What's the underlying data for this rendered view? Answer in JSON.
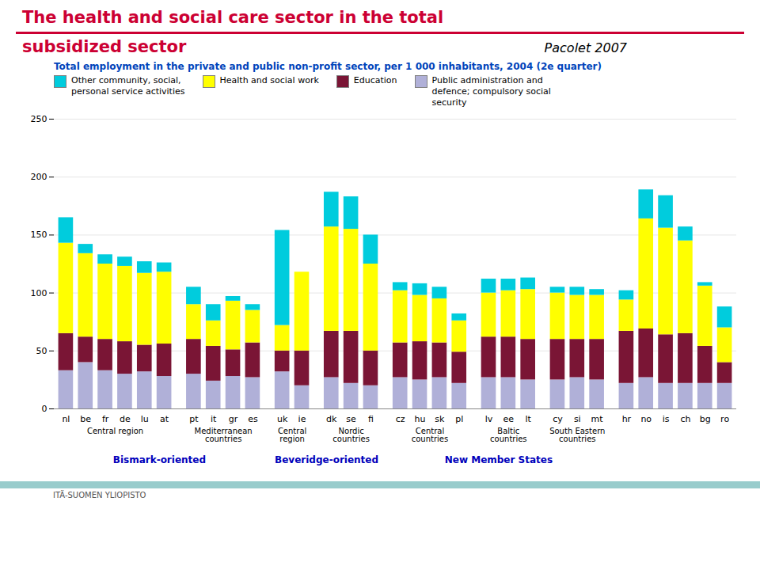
{
  "chart_data": {
    "type": "bar",
    "stacked": true,
    "grid": true,
    "title": "The health and social care sector in the total\nsubsidized sector",
    "subtitle": "Total employment in the private and public non-profit sector, per 1 000 inhabitants, 2004 (2e quarter)",
    "categories": [
      "nl",
      "be",
      "fr",
      "de",
      "lu",
      "at",
      "pt",
      "it",
      "gr",
      "es",
      "uk",
      "ie",
      "dk",
      "se",
      "fi",
      "cz",
      "hu",
      "sk",
      "pl",
      "lv",
      "ee",
      "lt",
      "cy",
      "si",
      "mt",
      "hr",
      "no",
      "is",
      "ch",
      "bg",
      "ro"
    ],
    "ylim": [
      0,
      250
    ],
    "yticks": [
      0,
      50,
      100,
      150,
      200,
      250
    ],
    "series": [
      {
        "name": "Public administration and\ndefence; compulsory social\nsecurity",
        "color": "#b0b0d8",
        "values": [
          33,
          40,
          33,
          30,
          32,
          28,
          30,
          24,
          28,
          27,
          32,
          20,
          27,
          22,
          20,
          27,
          25,
          27,
          22,
          27,
          27,
          25,
          25,
          27,
          25,
          22,
          27,
          22,
          22,
          22,
          22
        ]
      },
      {
        "name": "Education",
        "color": "#7a1535",
        "values": [
          32,
          22,
          27,
          28,
          23,
          28,
          30,
          30,
          23,
          30,
          18,
          30,
          40,
          45,
          30,
          30,
          33,
          30,
          27,
          35,
          35,
          35,
          35,
          33,
          35,
          45,
          42,
          42,
          43,
          32,
          18
        ]
      },
      {
        "name": "Health and social work",
        "color": "#ffff00",
        "values": [
          78,
          72,
          65,
          65,
          62,
          62,
          30,
          22,
          42,
          28,
          22,
          68,
          90,
          88,
          75,
          45,
          40,
          38,
          27,
          38,
          40,
          43,
          40,
          38,
          38,
          27,
          95,
          92,
          80,
          52,
          30
        ]
      },
      {
        "name": "Other community, social,\npersonal service activities",
        "color": "#00ccdd",
        "values": [
          22,
          8,
          8,
          8,
          10,
          8,
          15,
          14,
          4,
          5,
          82,
          0,
          30,
          28,
          25,
          7,
          10,
          10,
          6,
          12,
          10,
          10,
          5,
          7,
          5,
          8,
          25,
          28,
          12,
          3,
          18
        ]
      }
    ],
    "annotations": [
      {
        "text": "Pacolet 2007"
      },
      {
        "text": "ITÄ-SUOMEN YLIOPISTO"
      },
      {
        "text": "Central region",
        "kind": "group",
        "span": [
          "nl",
          "at"
        ]
      },
      {
        "text": "Mediterranean\ncountries",
        "kind": "group",
        "span": [
          "pt",
          "es"
        ]
      },
      {
        "text": "Central\nregion",
        "kind": "group",
        "span": [
          "uk",
          "ie"
        ]
      },
      {
        "text": "Nordic\ncountries",
        "kind": "group",
        "span": [
          "dk",
          "fi"
        ]
      },
      {
        "text": "Central\ncountries",
        "kind": "group",
        "span": [
          "cz",
          "pl"
        ]
      },
      {
        "text": "Baltic\ncountries",
        "kind": "group",
        "span": [
          "lv",
          "lt"
        ]
      },
      {
        "text": "South Eastern\ncountries",
        "kind": "group",
        "span": [
          "cy",
          "mt"
        ]
      },
      {
        "text": "Bismark-oriented",
        "kind": "orientation",
        "span": [
          "nl",
          "es"
        ]
      },
      {
        "text": "Beveridge-oriented",
        "kind": "orientation",
        "span": [
          "uk",
          "fi"
        ]
      },
      {
        "text": "New Member States",
        "kind": "orientation",
        "span": [
          "cz",
          "mt"
        ]
      }
    ]
  }
}
